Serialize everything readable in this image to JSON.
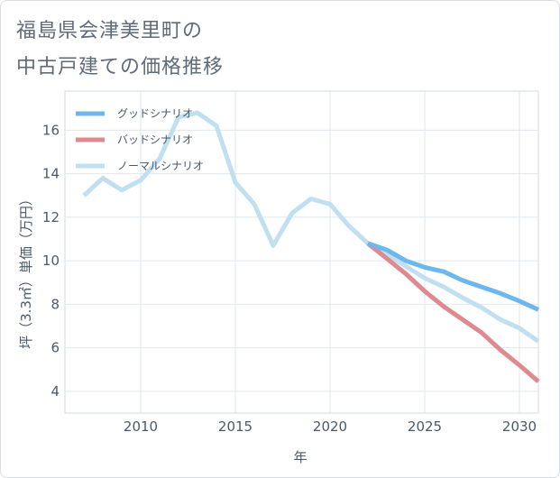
{
  "title_line1": "福島県会津美里町の",
  "title_line2": "中古戸建ての価格推移",
  "chart_data": {
    "type": "line",
    "xlabel": "年",
    "ylabel": "坪（3.3㎡）単価（万円）",
    "xlim": [
      2006,
      2031
    ],
    "ylim": [
      3,
      17.8
    ],
    "x_ticks": [
      2010,
      2015,
      2020,
      2025,
      2030
    ],
    "y_ticks": [
      4,
      6,
      8,
      10,
      12,
      14,
      16
    ],
    "grid": true,
    "legend_position": "top-left",
    "series": [
      {
        "name": "グッドシナリオ",
        "color": "#6cb8ee",
        "x": [
          2022,
          2023,
          2024,
          2025,
          2026,
          2027,
          2028,
          2029,
          2030,
          2031
        ],
        "y": [
          10.8,
          10.5,
          10.0,
          9.7,
          9.5,
          9.1,
          8.8,
          8.5,
          8.15,
          7.75
        ]
      },
      {
        "name": "バッドシナリオ",
        "color": "#de8a90",
        "x": [
          2022,
          2023,
          2024,
          2025,
          2026,
          2027,
          2028,
          2029,
          2030,
          2031
        ],
        "y": [
          10.8,
          10.1,
          9.4,
          8.6,
          7.9,
          7.3,
          6.7,
          5.9,
          5.2,
          4.45
        ]
      },
      {
        "name": "ノーマルシナリオ",
        "color": "#c0dff0",
        "x": [
          2007,
          2008,
          2009,
          2010,
          2011,
          2012,
          2013,
          2014,
          2015,
          2016,
          2017,
          2018,
          2019,
          2020,
          2021,
          2022,
          2023,
          2024,
          2025,
          2026,
          2027,
          2028,
          2029,
          2030,
          2031
        ],
        "y": [
          13.0,
          13.8,
          13.25,
          13.7,
          14.7,
          16.6,
          16.8,
          16.2,
          13.6,
          12.6,
          10.7,
          12.2,
          12.85,
          12.6,
          11.6,
          10.8,
          10.3,
          9.75,
          9.2,
          8.8,
          8.3,
          7.85,
          7.3,
          6.9,
          6.3
        ]
      }
    ]
  }
}
